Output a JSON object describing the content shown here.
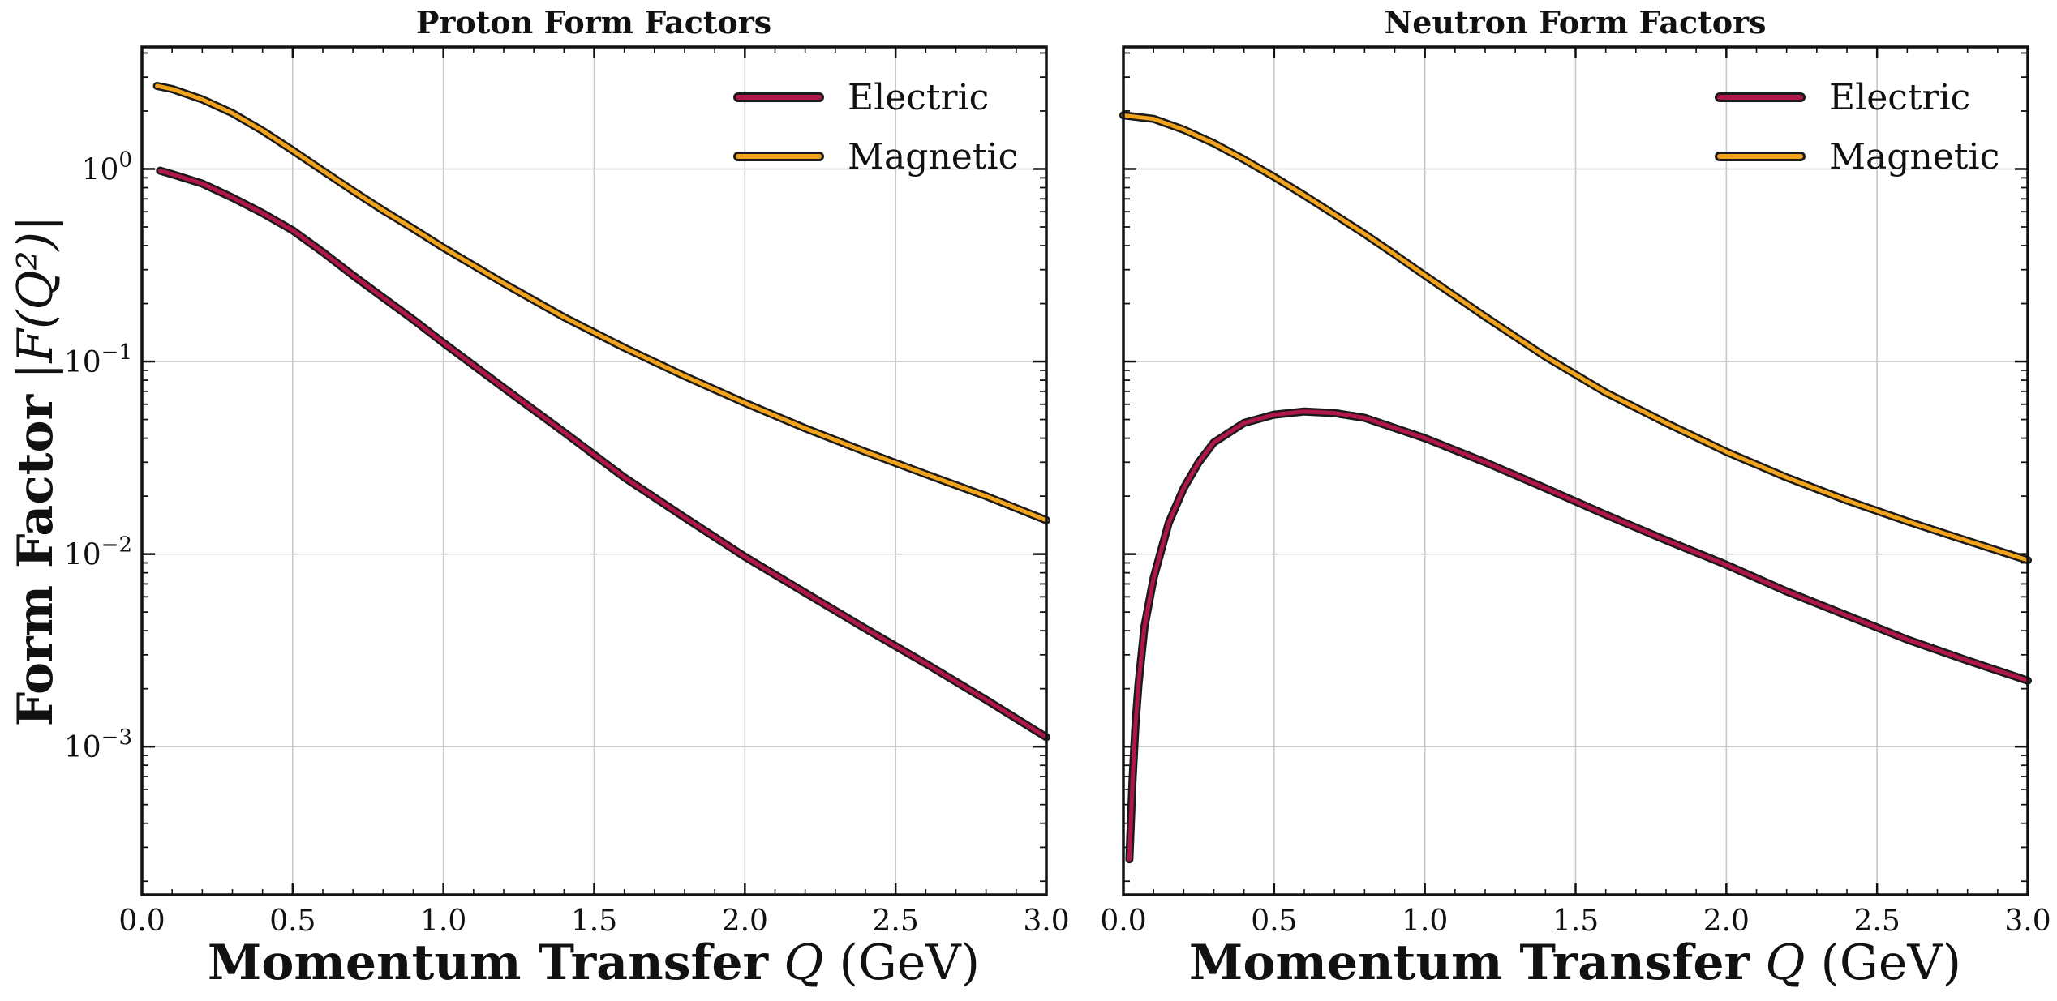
{
  "chart_data": [
    {
      "type": "line",
      "title": "Proton Form Factors",
      "xlabel_bold": "Momentum Transfer",
      "xlabel_var": "Q",
      "xlabel_unit": "(GeV)",
      "ylabel_bold": "Form Factor",
      "ylabel_math": "|F(Q²)|",
      "xlim": [
        0.0,
        3.0
      ],
      "ylim": [
        0.00017,
        4.3
      ],
      "yscale": "log",
      "grid": true,
      "legend": "top-right",
      "xticks": [
        "0.0",
        "0.5",
        "1.0",
        "1.5",
        "2.0",
        "2.5",
        "3.0"
      ],
      "yticks": [
        {
          "value": 1,
          "base": "10",
          "exp": "0"
        },
        {
          "value": 0.1,
          "base": "10",
          "exp": "−1"
        },
        {
          "value": 0.01,
          "base": "10",
          "exp": "−2"
        },
        {
          "value": 0.001,
          "base": "10",
          "exp": "−3"
        }
      ],
      "series": [
        {
          "name": "Electric",
          "color": "#b0164a",
          "x": [
            0.06,
            0.1,
            0.2,
            0.3,
            0.4,
            0.5,
            0.6,
            0.7,
            0.8,
            0.9,
            1.0,
            1.2,
            1.4,
            1.6,
            1.8,
            2.0,
            2.2,
            2.4,
            2.6,
            2.8,
            3.0
          ],
          "y": [
            0.98,
            0.94,
            0.84,
            0.71,
            0.59,
            0.48,
            0.37,
            0.28,
            0.215,
            0.165,
            0.125,
            0.073,
            0.043,
            0.025,
            0.0155,
            0.0097,
            0.0063,
            0.0041,
            0.0027,
            0.00175,
            0.00112
          ]
        },
        {
          "name": "Magnetic",
          "color": "#f2a31c",
          "x": [
            0.05,
            0.1,
            0.2,
            0.3,
            0.4,
            0.5,
            0.6,
            0.7,
            0.8,
            0.9,
            1.0,
            1.2,
            1.4,
            1.6,
            1.8,
            2.0,
            2.2,
            2.4,
            2.6,
            2.8,
            3.0
          ],
          "y": [
            2.7,
            2.6,
            2.3,
            1.95,
            1.58,
            1.25,
            0.98,
            0.77,
            0.61,
            0.49,
            0.39,
            0.255,
            0.17,
            0.118,
            0.084,
            0.061,
            0.045,
            0.034,
            0.026,
            0.02,
            0.015
          ]
        }
      ]
    },
    {
      "type": "line",
      "title": "Neutron Form Factors",
      "xlabel_bold": "Momentum Transfer",
      "xlabel_var": "Q",
      "xlabel_unit": "(GeV)",
      "xlim": [
        0.0,
        3.0
      ],
      "ylim": [
        0.00017,
        4.3
      ],
      "yscale": "log",
      "grid": true,
      "legend": "top-right",
      "xticks": [
        "0.0",
        "0.5",
        "1.0",
        "1.5",
        "2.0",
        "2.5",
        "3.0"
      ],
      "series": [
        {
          "name": "Electric",
          "color": "#b0164a",
          "x": [
            0.02,
            0.03,
            0.04,
            0.05,
            0.07,
            0.1,
            0.15,
            0.2,
            0.25,
            0.3,
            0.4,
            0.5,
            0.6,
            0.7,
            0.8,
            1.0,
            1.2,
            1.4,
            1.6,
            1.8,
            2.0,
            2.2,
            2.4,
            2.6,
            2.8,
            3.0
          ],
          "y": [
            0.00026,
            0.00066,
            0.0013,
            0.0021,
            0.0042,
            0.0075,
            0.0145,
            0.022,
            0.03,
            0.038,
            0.048,
            0.053,
            0.055,
            0.054,
            0.051,
            0.04,
            0.03,
            0.022,
            0.016,
            0.0118,
            0.0088,
            0.0064,
            0.0048,
            0.0036,
            0.0028,
            0.0022
          ]
        },
        {
          "name": "Magnetic",
          "color": "#f2a31c",
          "x": [
            0.0,
            0.1,
            0.2,
            0.3,
            0.4,
            0.5,
            0.6,
            0.7,
            0.8,
            0.9,
            1.0,
            1.2,
            1.4,
            1.6,
            1.8,
            2.0,
            2.2,
            2.4,
            2.6,
            2.8,
            3.0
          ],
          "y": [
            1.9,
            1.82,
            1.6,
            1.36,
            1.12,
            0.91,
            0.73,
            0.58,
            0.46,
            0.36,
            0.28,
            0.171,
            0.106,
            0.069,
            0.048,
            0.034,
            0.025,
            0.019,
            0.0148,
            0.0117,
            0.0093
          ]
        }
      ]
    }
  ]
}
